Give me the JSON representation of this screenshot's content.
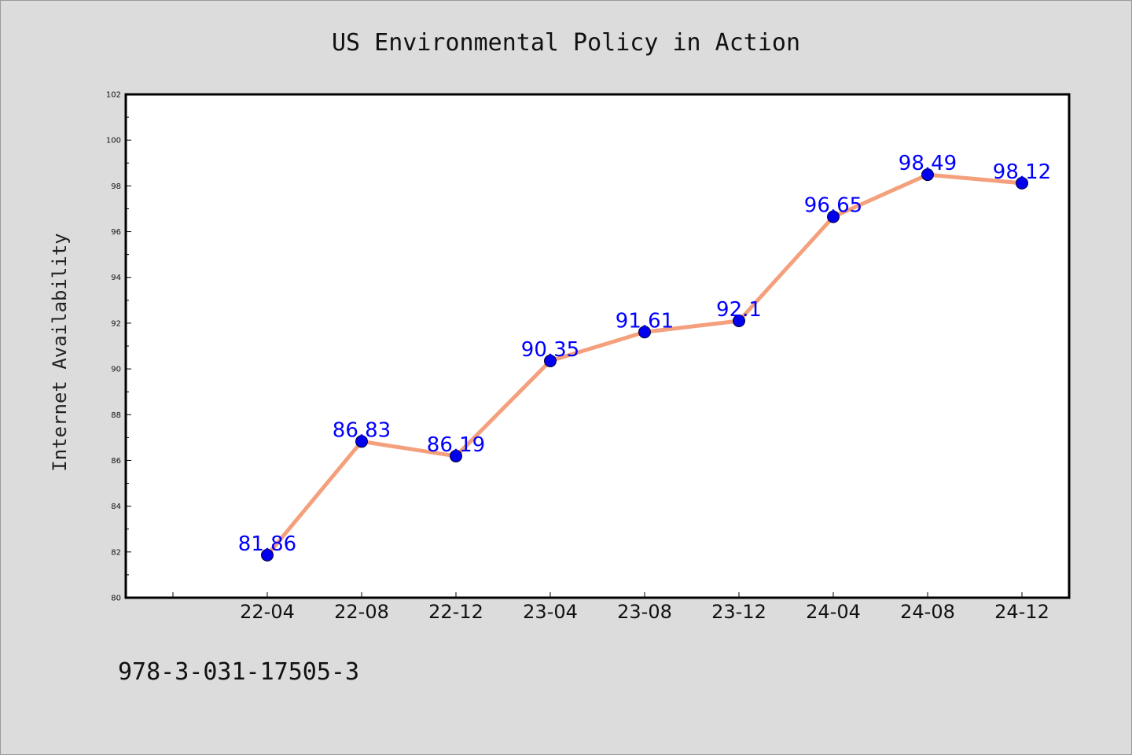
{
  "figure": {
    "background": "#dcdcdc",
    "plot_background": "#ffffff",
    "footer_text": "978-3-031-17505-3"
  },
  "chart_data": {
    "type": "line",
    "title": "US Environmental Policy in Action",
    "xlabel": "",
    "ylabel": "Internet Availability",
    "categories": [
      "22-04",
      "22-08",
      "22-12",
      "23-04",
      "23-08",
      "23-12",
      "24-04",
      "24-08",
      "24-12"
    ],
    "series": [
      {
        "values": [
          81.86,
          86.83,
          86.19,
          90.35,
          91.61,
          92.1,
          96.65,
          98.49,
          98.12
        ],
        "labels": [
          "81.86",
          "86.83",
          "86.19",
          "90.35",
          "91.61",
          "92.1",
          "96.65",
          "98.49",
          "98.12"
        ],
        "line_color": "#f4a07c",
        "marker_color": "#0000ee",
        "label_color": "#0000ff"
      }
    ],
    "ylim": [
      80,
      102
    ],
    "y_major_ticks": [
      80,
      82,
      84,
      86,
      88,
      90,
      92,
      94,
      96,
      98,
      100,
      102
    ],
    "y_tick_labels": [
      "80",
      "82",
      "84",
      "86",
      "88",
      "90",
      "92",
      "94",
      "96",
      "98",
      "100",
      "102"
    ],
    "grid": false,
    "legend": "none"
  }
}
